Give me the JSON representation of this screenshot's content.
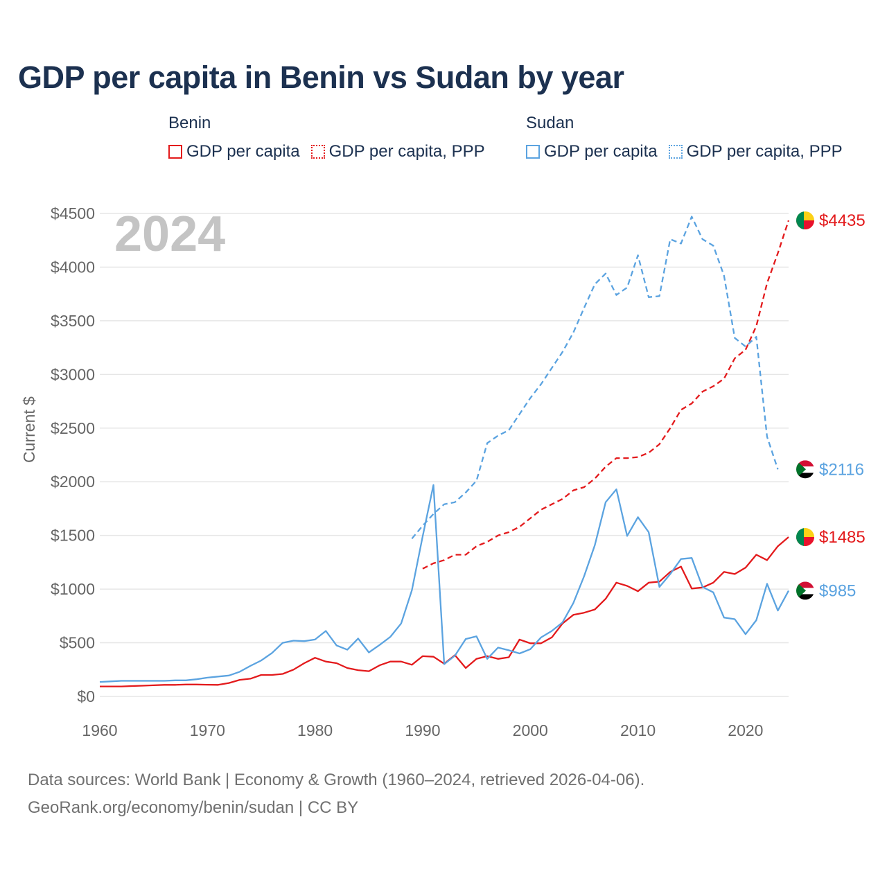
{
  "title": "GDP per capita in Benin vs Sudan by year",
  "legend": {
    "groups": [
      {
        "name": "Benin",
        "items": [
          {
            "label": "GDP per capita",
            "color": "#e31a1c",
            "style": "solid"
          },
          {
            "label": "GDP per capita, PPP",
            "color": "#e31a1c",
            "style": "dotted"
          }
        ]
      },
      {
        "name": "Sudan",
        "items": [
          {
            "label": "GDP per capita",
            "color": "#5ba3e0",
            "style": "solid"
          },
          {
            "label": "GDP per capita, PPP",
            "color": "#5ba3e0",
            "style": "dotted"
          }
        ]
      }
    ]
  },
  "footer": {
    "line1": "Data sources: World Bank | Economy & Growth (1960–2024, retrieved 2026-04-06).",
    "line2": "GeoRank.org/economy/benin/sudan | CC BY"
  },
  "chart_data": {
    "type": "line",
    "title": "GDP per capita in Benin vs Sudan by year",
    "year_label": "2024",
    "xlabel": "",
    "ylabel": "Current $",
    "xlim": [
      1960,
      2024
    ],
    "ylim": [
      0,
      4500
    ],
    "x_ticks": [
      1960,
      1970,
      1980,
      1990,
      2000,
      2010,
      2020
    ],
    "y_ticks": [
      0,
      500,
      1000,
      1500,
      2000,
      2500,
      3000,
      3500,
      4000,
      4500
    ],
    "y_tick_labels": [
      "$0",
      "$500",
      "$1000",
      "$1500",
      "$2000",
      "$2500",
      "$3000",
      "$3500",
      "$4000",
      "$4500"
    ],
    "grid": true,
    "series": [
      {
        "name": "Benin GDP per capita",
        "country": "Benin",
        "color": "#e31a1c",
        "dash": "solid",
        "end_label": "$1485",
        "x_start": 1960,
        "values": [
          93,
          93,
          93,
          97,
          100,
          104,
          108,
          108,
          111,
          111,
          109,
          108,
          125,
          154,
          165,
          200,
          200,
          210,
          250,
          310,
          360,
          325,
          310,
          265,
          245,
          235,
          290,
          325,
          325,
          295,
          375,
          370,
          305,
          385,
          265,
          350,
          375,
          350,
          365,
          530,
          495,
          495,
          550,
          680,
          760,
          780,
          810,
          910,
          1060,
          1030,
          980,
          1060,
          1070,
          1160,
          1210,
          1005,
          1015,
          1060,
          1160,
          1140,
          1200,
          1320,
          1270,
          1400,
          1485
        ]
      },
      {
        "name": "Benin GDP per capita, PPP",
        "country": "Benin",
        "color": "#e31a1c",
        "dash": "dashed",
        "end_label": "$4435",
        "x_start": 1990,
        "values": [
          1190,
          1240,
          1270,
          1320,
          1320,
          1400,
          1440,
          1500,
          1530,
          1580,
          1660,
          1740,
          1790,
          1840,
          1920,
          1950,
          2030,
          2140,
          2220,
          2220,
          2230,
          2270,
          2350,
          2500,
          2670,
          2730,
          2840,
          2890,
          2960,
          3150,
          3230,
          3450,
          3850,
          4130,
          4435
        ]
      },
      {
        "name": "Sudan GDP per capita",
        "country": "Sudan",
        "color": "#5ba3e0",
        "dash": "solid",
        "end_label": "$985",
        "x_start": 1960,
        "values": [
          135,
          140,
          145,
          145,
          145,
          145,
          145,
          150,
          150,
          160,
          175,
          185,
          195,
          230,
          285,
          335,
          405,
          500,
          520,
          515,
          530,
          610,
          475,
          435,
          540,
          410,
          480,
          555,
          680,
          990,
          1490,
          1970,
          300,
          380,
          535,
          560,
          350,
          455,
          430,
          400,
          440,
          550,
          610,
          690,
          870,
          1120,
          1410,
          1810,
          1930,
          1495,
          1670,
          1530,
          1020,
          1140,
          1280,
          1290,
          1020,
          970,
          735,
          720,
          580,
          710,
          1050,
          800,
          985
        ]
      },
      {
        "name": "Sudan GDP per capita, PPP",
        "country": "Sudan",
        "color": "#5ba3e0",
        "dash": "dashed",
        "end_label": "$2116",
        "x_start": 1989,
        "values": [
          1470,
          1590,
          1700,
          1790,
          1810,
          1900,
          2010,
          2360,
          2430,
          2480,
          2630,
          2780,
          2910,
          3060,
          3210,
          3390,
          3620,
          3840,
          3940,
          3740,
          3810,
          4110,
          3720,
          3730,
          4260,
          4220,
          4470,
          4260,
          4200,
          3920,
          3340,
          3260,
          3350,
          2420,
          2116
        ]
      }
    ]
  }
}
